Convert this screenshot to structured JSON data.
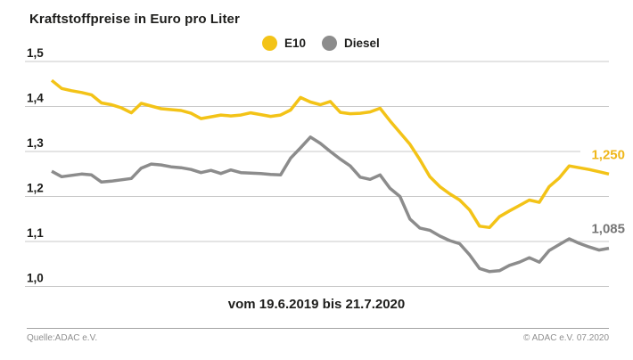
{
  "title": "Kraftstoffpreise in Euro pro Liter",
  "legend": [
    {
      "label": "E10",
      "color": "#F3C317"
    },
    {
      "label": "Diesel",
      "color": "#8C8C8C"
    }
  ],
  "x_caption": "vom 19.6.2019 bis 21.7.2020",
  "footer": {
    "left": "Quelle:ADAC e.V.",
    "right": "© ADAC e.V. 07.2020"
  },
  "colors": {
    "e10": "#F3C317",
    "diesel": "#8C8C8C",
    "gridline": "#c9c9c9",
    "text": "#1d1d1b",
    "diesel_label": "#767676",
    "footer_text": "#8f8f8f"
  },
  "chart_data": {
    "type": "line",
    "title": "Kraftstoffpreise in Euro pro Liter",
    "xlabel": "vom 19.6.2019 bis 21.7.2020",
    "ylabel": "Euro pro Liter",
    "ylim": [
      1.0,
      1.5
    ],
    "grid": true,
    "legend_position": "top-center",
    "yticks": [
      {
        "value": 1.5,
        "label": "1,5"
      },
      {
        "value": 1.4,
        "label": "1,4"
      },
      {
        "value": 1.3,
        "label": "1,3"
      },
      {
        "value": 1.2,
        "label": "1,2"
      },
      {
        "value": 1.1,
        "label": "1,1"
      },
      {
        "value": 1.0,
        "label": "1,0"
      }
    ],
    "series": [
      {
        "name": "E10",
        "color": "#F3C317",
        "label_color": "#EFB71B",
        "end_label": "1,250",
        "values": [
          1.458,
          1.44,
          1.435,
          1.431,
          1.426,
          1.408,
          1.404,
          1.397,
          1.386,
          1.407,
          1.401,
          1.395,
          1.393,
          1.391,
          1.385,
          1.373,
          1.377,
          1.381,
          1.379,
          1.381,
          1.386,
          1.382,
          1.378,
          1.381,
          1.392,
          1.42,
          1.41,
          1.404,
          1.411,
          1.387,
          1.384,
          1.385,
          1.388,
          1.396,
          1.368,
          1.342,
          1.316,
          1.282,
          1.244,
          1.222,
          1.206,
          1.192,
          1.17,
          1.134,
          1.131,
          1.155,
          1.168,
          1.18,
          1.192,
          1.187,
          1.222,
          1.241,
          1.268,
          1.264,
          1.26,
          1.255,
          1.25
        ]
      },
      {
        "name": "Diesel",
        "color": "#8C8C8C",
        "label_color": "#767676",
        "end_label": "1,085",
        "values": [
          1.256,
          1.244,
          1.247,
          1.25,
          1.248,
          1.232,
          1.234,
          1.237,
          1.24,
          1.263,
          1.272,
          1.27,
          1.266,
          1.264,
          1.26,
          1.253,
          1.258,
          1.251,
          1.259,
          1.253,
          1.252,
          1.251,
          1.249,
          1.248,
          1.285,
          1.308,
          1.332,
          1.318,
          1.3,
          1.283,
          1.268,
          1.243,
          1.238,
          1.248,
          1.218,
          1.2,
          1.15,
          1.13,
          1.125,
          1.112,
          1.102,
          1.095,
          1.07,
          1.04,
          1.033,
          1.035,
          1.047,
          1.054,
          1.064,
          1.054,
          1.08,
          1.093,
          1.106,
          1.096,
          1.088,
          1.081,
          1.085
        ]
      }
    ]
  }
}
